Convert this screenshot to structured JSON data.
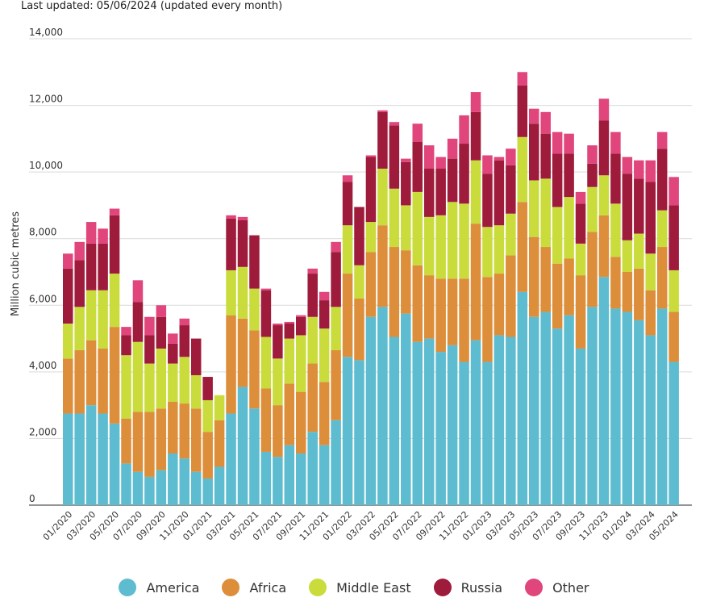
{
  "header": {
    "updated_text": "Last updated: 05/06/2024 (updated every month)"
  },
  "chart_data": {
    "type": "bar",
    "stacked": true,
    "title": "",
    "xlabel": "",
    "ylabel": "Million cubic metres",
    "ylim": [
      0,
      14000
    ],
    "yticks": [
      0,
      2000,
      4000,
      6000,
      8000,
      10000,
      12000,
      14000
    ],
    "ytick_labels": [
      "0",
      "2,000",
      "4,000",
      "6,000",
      "8,000",
      "10,000",
      "12,000",
      "14,000"
    ],
    "grid": true,
    "legend_position": "bottom",
    "categories": [
      "01/2020",
      "02/2020",
      "03/2020",
      "04/2020",
      "05/2020",
      "06/2020",
      "07/2020",
      "08/2020",
      "09/2020",
      "10/2020",
      "11/2020",
      "12/2020",
      "01/2021",
      "02/2021",
      "03/2021",
      "04/2021",
      "05/2021",
      "06/2021",
      "07/2021",
      "08/2021",
      "09/2021",
      "10/2021",
      "11/2021",
      "12/2021",
      "01/2022",
      "02/2022",
      "03/2022",
      "04/2022",
      "05/2022",
      "06/2022",
      "07/2022",
      "08/2022",
      "09/2022",
      "10/2022",
      "11/2022",
      "12/2022",
      "01/2023",
      "02/2023",
      "03/2023",
      "04/2023",
      "05/2023",
      "06/2023",
      "07/2023",
      "08/2023",
      "09/2023",
      "10/2023",
      "11/2023",
      "12/2023",
      "01/2024",
      "02/2024",
      "03/2024",
      "04/2024",
      "05/2024"
    ],
    "shown_tick_labels": [
      "01/2020",
      "03/2020",
      "05/2020",
      "07/2020",
      "09/2020",
      "11/2020",
      "01/2021",
      "03/2021",
      "05/2021",
      "07/2021",
      "09/2021",
      "11/2021",
      "01/2022",
      "03/2022",
      "05/2022",
      "07/2022",
      "09/2022",
      "11/2022",
      "01/2023",
      "03/2023",
      "05/2023",
      "07/2023",
      "09/2023",
      "11/2023",
      "01/2024",
      "03/2024",
      "05/2024"
    ],
    "series": [
      {
        "name": "America",
        "color": "#5dbccf",
        "values": [
          2750,
          2750,
          3000,
          2750,
          2450,
          1250,
          1000,
          850,
          1050,
          1550,
          1400,
          1000,
          800,
          1150,
          2750,
          3550,
          2900,
          1600,
          1450,
          1800,
          1550,
          2200,
          1800,
          2550,
          4450,
          4350,
          5650,
          5950,
          5050,
          5750,
          4900,
          5000,
          4600,
          4800,
          4300,
          4950,
          4300,
          5100,
          5050,
          6400,
          5650,
          5800,
          5300,
          5700,
          4700,
          5950,
          6850,
          5900,
          5800,
          5550,
          5100,
          5900,
          4300
        ]
      },
      {
        "name": "Africa",
        "color": "#dd8e3a",
        "values": [
          1650,
          1900,
          1950,
          1950,
          2900,
          1350,
          1800,
          1950,
          1850,
          1550,
          1650,
          1900,
          1400,
          1400,
          2950,
          2050,
          2350,
          1900,
          1550,
          1850,
          1850,
          2050,
          1900,
          2100,
          2500,
          1850,
          1950,
          2450,
          2700,
          1900,
          2300,
          1900,
          2200,
          2000,
          2500,
          3500,
          2550,
          1850,
          2450,
          2700,
          2400,
          1950,
          1950,
          1700,
          2200,
          2250,
          1850,
          1550,
          1200,
          1550,
          1350,
          1850,
          1500
        ]
      },
      {
        "name": "Middle East",
        "color": "#c9dc3c",
        "values": [
          1050,
          1300,
          1500,
          1750,
          1600,
          1900,
          2100,
          1450,
          1800,
          1150,
          1400,
          1000,
          950,
          750,
          1350,
          1550,
          1250,
          1550,
          1400,
          1350,
          1700,
          1400,
          1600,
          1300,
          1450,
          1000,
          900,
          1700,
          1750,
          1350,
          2200,
          1750,
          1900,
          2300,
          2250,
          1900,
          1500,
          1450,
          1250,
          1950,
          1700,
          2050,
          1700,
          1850,
          950,
          1350,
          1200,
          1600,
          950,
          1050,
          1100,
          1100,
          1250
        ]
      },
      {
        "name": "Russia",
        "color": "#9e1b3c",
        "values": [
          1650,
          1400,
          1400,
          1400,
          1750,
          600,
          1200,
          850,
          950,
          600,
          950,
          1100,
          700,
          0,
          1550,
          1400,
          1600,
          1400,
          1000,
          450,
          550,
          1300,
          850,
          1650,
          1300,
          1750,
          1950,
          1700,
          1900,
          1300,
          1500,
          1450,
          1400,
          1300,
          1800,
          1450,
          1600,
          1950,
          1450,
          1550,
          1700,
          1350,
          1600,
          1300,
          1200,
          700,
          1650,
          1500,
          2000,
          1650,
          2150,
          1850,
          1950
        ]
      },
      {
        "name": "Other",
        "color": "#e0457b",
        "values": [
          450,
          550,
          650,
          450,
          200,
          250,
          650,
          550,
          350,
          300,
          200,
          0,
          0,
          0,
          100,
          100,
          0,
          50,
          50,
          50,
          50,
          150,
          250,
          300,
          200,
          0,
          50,
          50,
          100,
          100,
          550,
          700,
          350,
          600,
          850,
          600,
          550,
          100,
          500,
          400,
          450,
          650,
          650,
          600,
          350,
          550,
          650,
          650,
          500,
          550,
          650,
          500,
          850
        ]
      }
    ]
  },
  "legend": {
    "items": [
      {
        "label": "America",
        "color": "#5dbccf"
      },
      {
        "label": "Africa",
        "color": "#dd8e3a"
      },
      {
        "label": "Middle East",
        "color": "#c9dc3c"
      },
      {
        "label": "Russia",
        "color": "#9e1b3c"
      },
      {
        "label": "Other",
        "color": "#e0457b"
      }
    ]
  }
}
